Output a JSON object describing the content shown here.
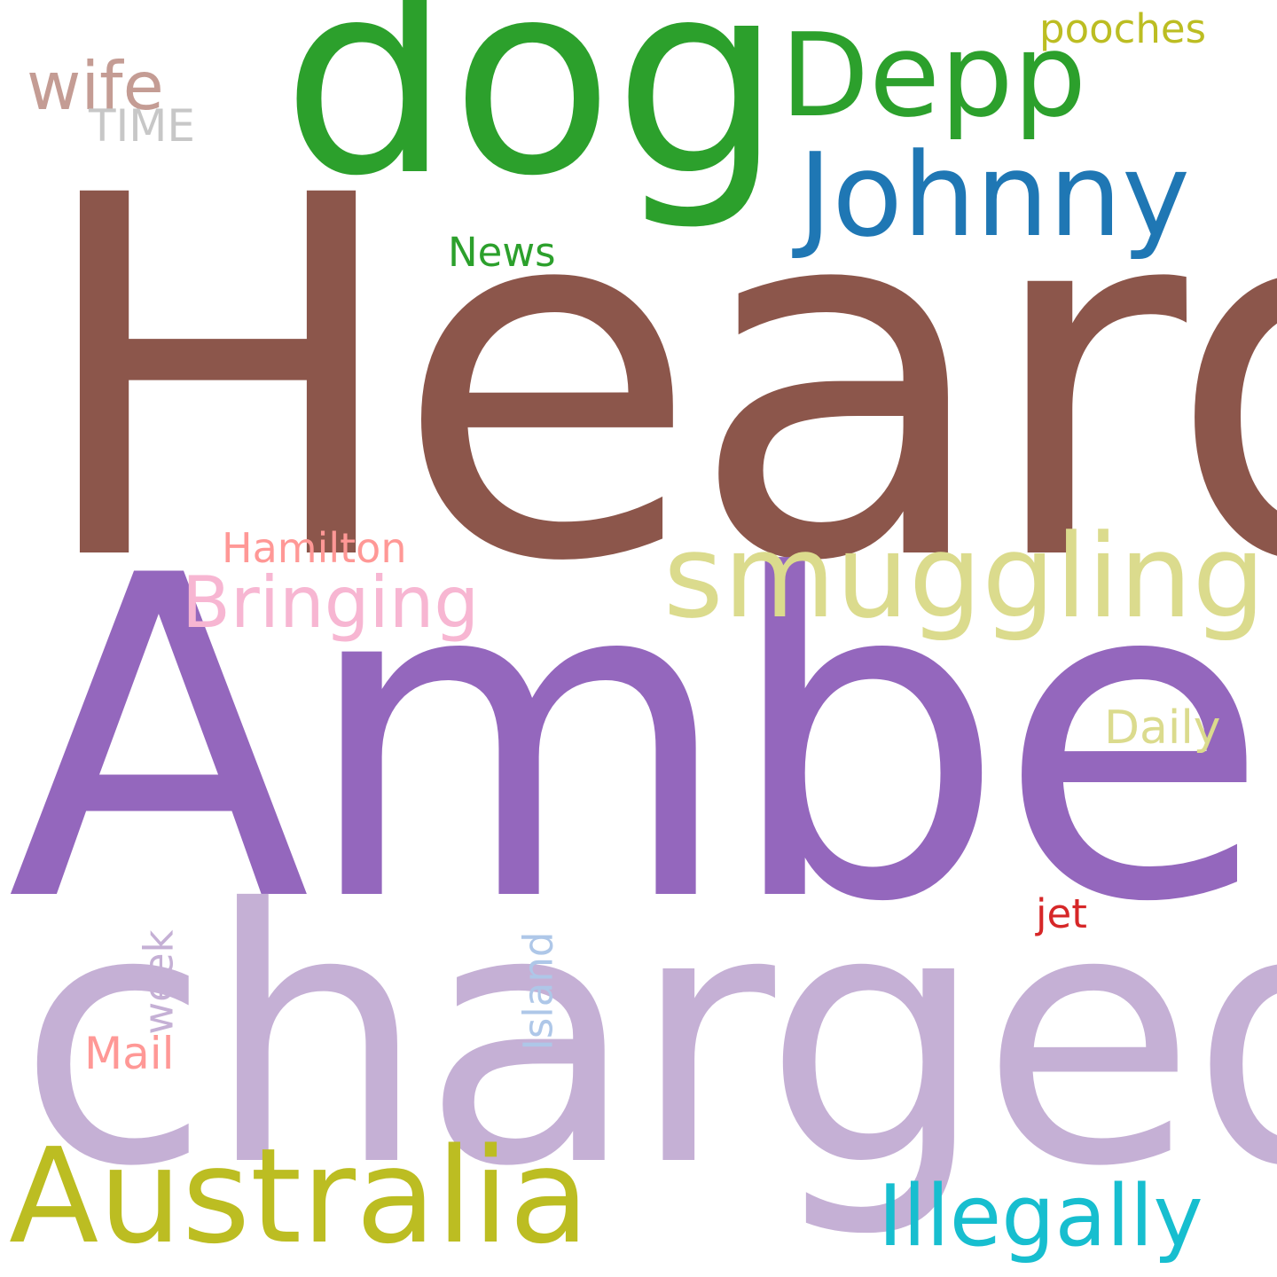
{
  "word_cloud": {
    "background": "#ffffff",
    "words": {
      "heard": {
        "text": "Heard",
        "color": "#8c564b"
      },
      "amber": {
        "text": "Amber",
        "color": "#9467bd"
      },
      "charged": {
        "text": "charged",
        "color": "#c5b0d5"
      },
      "dog": {
        "text": "dog",
        "color": "#2ca02c"
      },
      "depp": {
        "text": "Depp",
        "color": "#2ca02c"
      },
      "johnny": {
        "text": "Johnny",
        "color": "#1f77b4"
      },
      "smuggling": {
        "text": "smuggling",
        "color": "#dbdb8d"
      },
      "australia": {
        "text": "Australia",
        "color": "#bcbd22"
      },
      "illegally": {
        "text": "Illegally",
        "color": "#17becf"
      },
      "bringing": {
        "text": "Bringing",
        "color": "#f7b6d2"
      },
      "hamilton": {
        "text": "Hamilton",
        "color": "#ff9896"
      },
      "daily": {
        "text": "Daily",
        "color": "#dbdb8d"
      },
      "wife": {
        "text": "wife",
        "color": "#c49c94"
      },
      "time": {
        "text": "TIME",
        "color": "#c7c7c7"
      },
      "news": {
        "text": "News",
        "color": "#2ca02c"
      },
      "pooches": {
        "text": "pooches",
        "color": "#bcbd22"
      },
      "jet": {
        "text": "jet",
        "color": "#d62728"
      },
      "mail": {
        "text": "Mail",
        "color": "#ff9896"
      },
      "week": {
        "text": "week",
        "color": "#c5b0d5"
      },
      "island": {
        "text": "Island",
        "color": "#aec7e8"
      }
    }
  }
}
